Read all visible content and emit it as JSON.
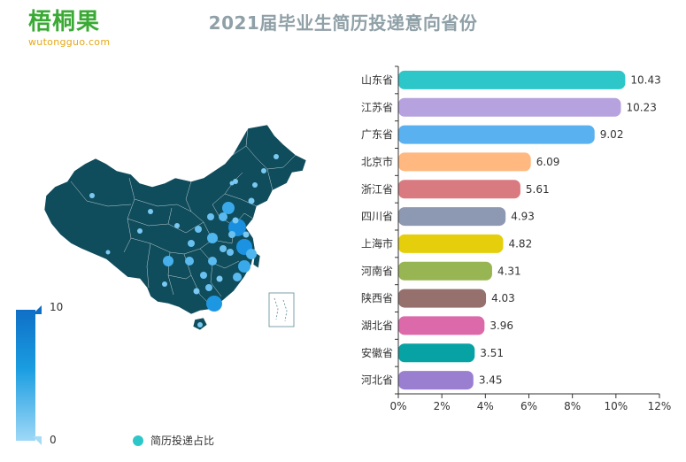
{
  "logo": {
    "main": "梧桐果",
    "sub": "wutongguo.com"
  },
  "map": {
    "visual_map": {
      "max_label": "10",
      "min_label": "0"
    },
    "legend": "简历投递占比",
    "land_color": "#0f4c5c",
    "hot_color": "#1a8fe0"
  },
  "chart_data": {
    "type": "bar",
    "orientation": "horizontal",
    "title": "2021届毕业生简历投递意向省份",
    "categories": [
      "山东省",
      "江苏省",
      "广东省",
      "北京市",
      "浙江省",
      "四川省",
      "上海市",
      "河南省",
      "陕西省",
      "湖北省",
      "安徽省",
      "河北省"
    ],
    "values": [
      10.43,
      10.23,
      9.02,
      6.09,
      5.61,
      4.93,
      4.82,
      4.31,
      4.03,
      3.96,
      3.51,
      3.45
    ],
    "value_labels": [
      "10.43",
      "10.23",
      "9.02",
      "6.09",
      "5.61",
      "4.93",
      "4.82",
      "4.31",
      "4.03",
      "3.96",
      "3.51",
      "3.45"
    ],
    "colors": [
      "#2ec7c9",
      "#b6a2de",
      "#5ab1ef",
      "#ffb980",
      "#d87a80",
      "#8d98b3",
      "#e5cf0d",
      "#97b552",
      "#95706d",
      "#dc69aa",
      "#07a2a4",
      "#9a7fd1"
    ],
    "x_ticks": [
      "0%",
      "2%",
      "4%",
      "6%",
      "8%",
      "10%",
      "12%"
    ],
    "xlim": [
      0,
      12
    ],
    "grid": false
  }
}
